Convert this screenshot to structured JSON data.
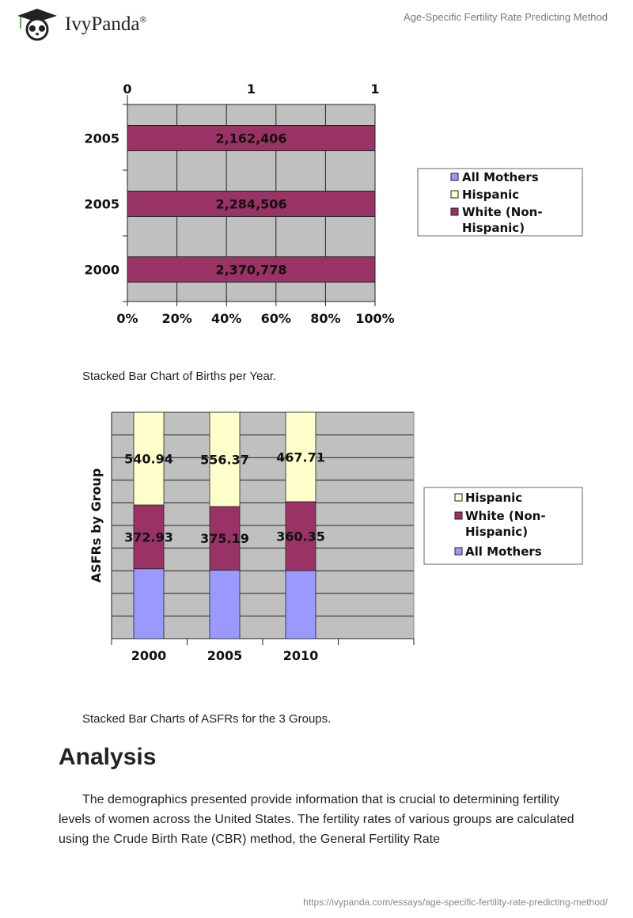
{
  "header": {
    "brand": "IvyPanda",
    "registered": "®",
    "doc_title": "Age-Specific Fertility Rate Predicting Method"
  },
  "chart_data": [
    {
      "type": "bar",
      "orientation": "horizontal",
      "stacked": "percent",
      "categories": [
        "2005",
        "2005",
        "2000"
      ],
      "series": [
        {
          "name": "White (Non-Hispanic)",
          "values": [
            2162406,
            2284506,
            2370778
          ],
          "labels": [
            "2,162,406",
            "2,284,506",
            "2,370,778"
          ],
          "color": "#993366"
        }
      ],
      "legend": [
        "All Mothers",
        "Hispanic",
        "White (Non-Hispanic)"
      ],
      "legend_colors": [
        "#9999ff",
        "#ffffcc",
        "#993366"
      ],
      "legend_placement": "right",
      "x_ticks": [
        "0%",
        "20%",
        "40%",
        "60%",
        "80%",
        "100%"
      ],
      "top_ticks": [
        "0",
        "1",
        "1"
      ],
      "xlim": [
        0,
        100
      ],
      "grid": true
    },
    {
      "type": "bar",
      "stacked": "percent",
      "categories": [
        "2000",
        "2005",
        "2010"
      ],
      "ylabel": "ASFRs by Group",
      "series": [
        {
          "name": "All Mothers",
          "values": [
            408,
            405,
            356
          ],
          "color": "#9999ff",
          "labeled": false
        },
        {
          "name": "White (Non-Hispanic)",
          "values": [
            372.93,
            375.19,
            360.35
          ],
          "labels": [
            "372.93",
            "375.19",
            "360.35"
          ],
          "color": "#993366"
        },
        {
          "name": "Hispanic",
          "values": [
            540.94,
            556.37,
            467.71
          ],
          "labels": [
            "540.94",
            "556.37",
            "467.71"
          ],
          "color": "#ffffcc"
        }
      ],
      "legend": [
        "Hispanic",
        "White (Non-Hispanic)",
        "All Mothers"
      ],
      "legend_placement": "right",
      "grid": true
    }
  ],
  "captions": [
    "Stacked Bar Chart of Births per Year.",
    "Stacked Bar Charts of ASFRs for the 3 Groups."
  ],
  "analysis": {
    "heading": "Analysis",
    "paragraph": "The demographics presented provide information that is crucial to determining fertility levels of women across the United States. The fertility rates of various groups are calculated using the Crude Birth Rate (CBR) method, the General Fertility Rate"
  },
  "footer": {
    "url": "https://ivypanda.com/essays/age-specific-fertility-rate-predicting-method/"
  }
}
